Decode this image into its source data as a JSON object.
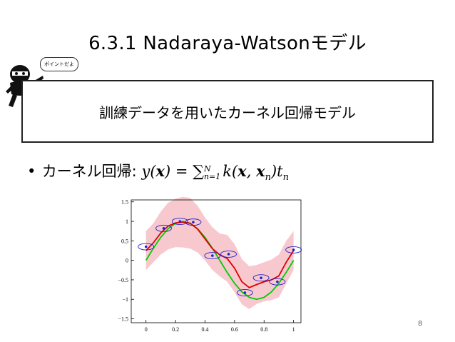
{
  "slide": {
    "title": "6.3.1 Nadaraya-Watsonモデル",
    "callout": "ポイントだよ",
    "box_text": "訓練データを用いたカーネル回帰モデル",
    "bullet_label": "カーネル回帰:",
    "page_number": "8"
  },
  "colors": {
    "true_curve": "#00cc00",
    "mean_curve": "#dd0000",
    "band": "#f7c9cf",
    "ellipse": "#2222cc"
  },
  "chart_data": {
    "type": "line",
    "title": "",
    "xlabel": "",
    "ylabel": "",
    "xlim": [
      -0.1,
      1.05
    ],
    "ylim": [
      -1.6,
      1.55
    ],
    "x_ticks": [
      "0",
      "0.2",
      "0.4",
      "0.6",
      "0.8",
      "1"
    ],
    "y_ticks": [
      "1.5",
      "1",
      "0.5",
      "0",
      "−0.5",
      "−1",
      "−1.5"
    ],
    "x_tick_values": [
      0,
      0.2,
      0.4,
      0.6,
      0.8,
      1.0
    ],
    "y_tick_values": [
      1.5,
      1,
      0.5,
      0,
      -0.5,
      -1,
      -1.5
    ],
    "x": [
      0,
      0.05,
      0.1,
      0.15,
      0.2,
      0.25,
      0.3,
      0.35,
      0.4,
      0.45,
      0.5,
      0.55,
      0.6,
      0.65,
      0.7,
      0.75,
      0.8,
      0.85,
      0.9,
      0.95,
      1.0
    ],
    "series": [
      {
        "values": [
          0.0,
          0.31,
          0.59,
          0.81,
          0.95,
          1.0,
          0.95,
          0.81,
          0.59,
          0.31,
          0.0,
          -0.31,
          -0.59,
          -0.81,
          -0.95,
          -1.0,
          -0.95,
          -0.81,
          -0.59,
          -0.31,
          0.0
        ]
      },
      {
        "values": [
          0.25,
          0.45,
          0.7,
          0.88,
          0.96,
          0.98,
          0.95,
          0.8,
          0.55,
          0.3,
          0.14,
          0.05,
          -0.2,
          -0.55,
          -0.7,
          -0.62,
          -0.55,
          -0.5,
          -0.4,
          -0.05,
          0.25
        ]
      }
    ],
    "band_halfwidth": [
      0.5,
      0.5,
      0.55,
      0.6,
      0.62,
      0.65,
      0.65,
      0.6,
      0.55,
      0.55,
      0.55,
      0.6,
      0.62,
      0.58,
      0.55,
      0.5,
      0.5,
      0.52,
      0.55,
      0.55,
      0.5
    ],
    "points": [
      {
        "x": 0.0,
        "y": 0.35
      },
      {
        "x": 0.12,
        "y": 0.82
      },
      {
        "x": 0.23,
        "y": 1.0
      },
      {
        "x": 0.32,
        "y": 0.98
      },
      {
        "x": 0.45,
        "y": 0.12
      },
      {
        "x": 0.56,
        "y": 0.16
      },
      {
        "x": 0.67,
        "y": -0.83
      },
      {
        "x": 0.78,
        "y": -0.45
      },
      {
        "x": 0.89,
        "y": -0.55
      },
      {
        "x": 1.0,
        "y": 0.27
      }
    ]
  }
}
